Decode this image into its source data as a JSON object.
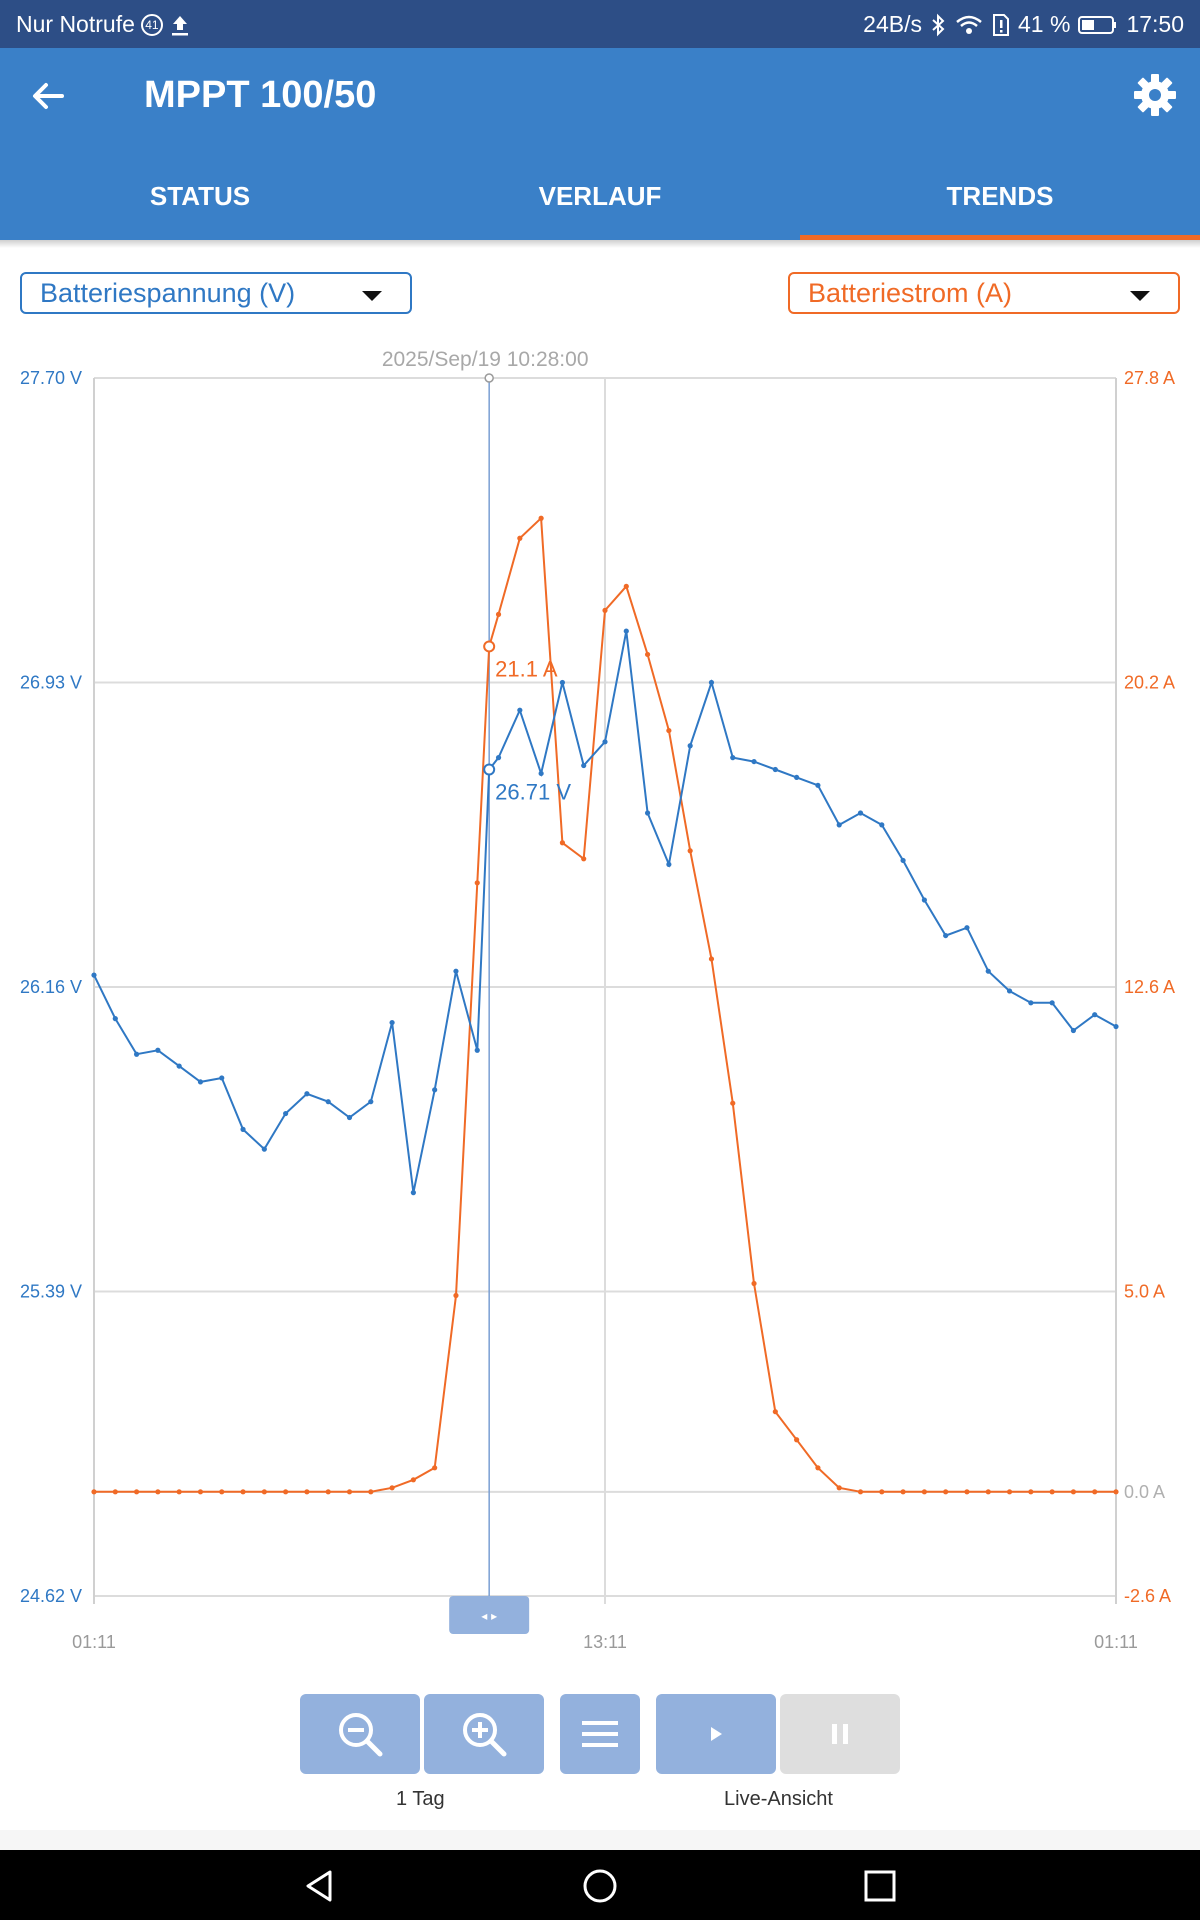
{
  "status_bar": {
    "carrier": "Nur Notrufe",
    "notif_count": "41",
    "net_speed": "24B/s",
    "battery": "41 %",
    "time": "17:50"
  },
  "app_bar": {
    "title": "MPPT 100/50",
    "tabs": [
      {
        "label": "STATUS",
        "active": false
      },
      {
        "label": "VERLAUF",
        "active": false
      },
      {
        "label": "TRENDS",
        "active": true
      }
    ]
  },
  "selectors": {
    "left": "Batteriespannung (V)",
    "right": "Batteriestrom (A)"
  },
  "colors": {
    "voltage": "#2f78c4",
    "current": "#f06a26",
    "app_bar": "#3a80c8",
    "status_bar": "#2d4e86"
  },
  "chart_data": {
    "type": "line",
    "cursor_label": "2025/Sep/19 10:28:00",
    "cursor_values": {
      "voltage": "26.71 V",
      "current": "21.1 A"
    },
    "x_tick_labels": [
      "01:11",
      "13:11",
      "01:11"
    ],
    "y_left": {
      "ticks": [
        "27.70 V",
        "26.93 V",
        "26.16 V",
        "25.39 V",
        "24.62 V"
      ],
      "range": [
        24.62,
        27.7
      ],
      "unit": "V"
    },
    "y_right": {
      "ticks": [
        "27.8 A",
        "20.2 A",
        "12.6 A",
        "5.0 A",
        "0.0 A",
        "-2.6 A"
      ],
      "range": [
        -2.6,
        27.8
      ],
      "unit": "A"
    },
    "x_range_hours": [
      0,
      24
    ],
    "cursor_x_hours": 9.28,
    "series": [
      {
        "name": "Batteriespannung (V)",
        "axis": "left",
        "x": [
          0,
          0.5,
          1,
          1.5,
          2,
          2.5,
          3,
          3.5,
          4,
          4.5,
          5,
          5.5,
          6,
          6.5,
          7,
          7.5,
          8,
          8.5,
          9,
          9.28,
          9.5,
          10,
          10.5,
          11,
          11.5,
          12,
          12.5,
          13,
          13.5,
          14,
          14.5,
          15,
          15.5,
          16,
          16.5,
          17,
          17.5,
          18,
          18.5,
          19,
          19.5,
          20,
          20.5,
          21,
          21.5,
          22,
          22.5,
          23,
          23.5,
          24
        ],
        "values": [
          26.19,
          26.08,
          25.99,
          26.0,
          25.96,
          25.92,
          25.93,
          25.8,
          25.75,
          25.84,
          25.89,
          25.87,
          25.83,
          25.87,
          26.07,
          25.64,
          25.9,
          26.2,
          26.0,
          26.71,
          26.74,
          26.86,
          26.7,
          26.93,
          26.72,
          26.78,
          27.06,
          26.6,
          26.47,
          26.77,
          26.93,
          26.74,
          26.73,
          26.71,
          26.69,
          26.67,
          26.57,
          26.6,
          26.57,
          26.48,
          26.38,
          26.29,
          26.31,
          26.2,
          26.15,
          26.12,
          26.12,
          26.05,
          26.09,
          26.06
        ]
      },
      {
        "name": "Batteriestrom (A)",
        "axis": "right",
        "x": [
          0,
          0.5,
          1,
          1.5,
          2,
          2.5,
          3,
          3.5,
          4,
          4.5,
          5,
          5.5,
          6,
          6.5,
          7,
          7.5,
          8,
          8.5,
          9,
          9.28,
          9.5,
          10,
          10.5,
          11,
          11.5,
          12,
          12.5,
          13,
          13.5,
          14,
          14.5,
          15,
          15.5,
          16,
          16.5,
          17,
          17.5,
          18,
          18.5,
          19,
          19.5,
          20,
          20.5,
          21,
          21.5,
          22,
          22.5,
          23,
          23.5,
          24
        ],
        "values": [
          0,
          0,
          0,
          0,
          0,
          0,
          0,
          0,
          0,
          0,
          0,
          0,
          0,
          0,
          0.1,
          0.3,
          0.6,
          4.9,
          15.2,
          21.1,
          21.9,
          23.8,
          24.3,
          16.2,
          15.8,
          22.0,
          22.6,
          20.9,
          19.0,
          16.0,
          13.3,
          9.7,
          5.2,
          2.0,
          1.3,
          0.6,
          0.1,
          0,
          0,
          0,
          0,
          0,
          0,
          0,
          0,
          0,
          0,
          0,
          0,
          0
        ]
      }
    ]
  },
  "controls": {
    "zoom_label": "1 Tag",
    "live_label": "Live-Ansicht"
  }
}
